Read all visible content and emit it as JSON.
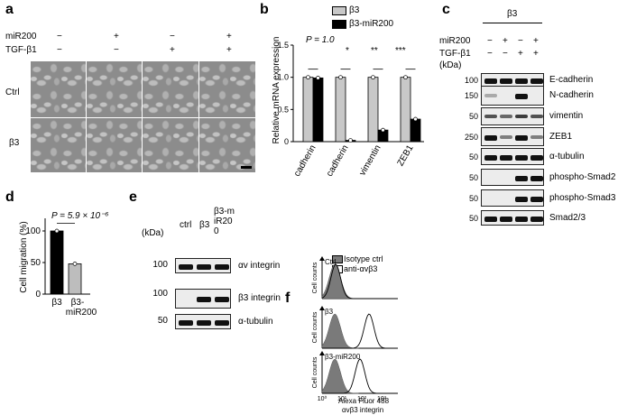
{
  "panel_a": {
    "label": "a",
    "cond_mir200": "miR200",
    "cond_tgf": "TGF-β1",
    "mir200_signs": [
      "−",
      "+",
      "−",
      "+"
    ],
    "tgf_signs": [
      "−",
      "−",
      "+",
      "+"
    ],
    "row_labels": [
      "Ctrl",
      "β3"
    ]
  },
  "panel_b": {
    "label": "b",
    "legend": [
      "β3",
      "β3-miR200"
    ],
    "p_text": "P = 1.0",
    "sig": [
      "*",
      "**",
      "***"
    ]
  },
  "panel_c": {
    "label": "c",
    "header": "β3",
    "mir200": "miR200",
    "tgf": "TGF-β1",
    "signs_mir": [
      "−",
      "+",
      "−",
      "+"
    ],
    "signs_tgf": [
      "−",
      "−",
      "+",
      "+"
    ],
    "kda": "(kDa)",
    "blots": [
      {
        "mw": "100",
        "name": "E-cadherin"
      },
      {
        "mw": "150",
        "name": "N-cadherin"
      },
      {
        "mw": "50",
        "name": "vimentin"
      },
      {
        "mw": "250",
        "name": "ZEB1"
      },
      {
        "mw": "50",
        "name": "α-tubulin"
      },
      {
        "mw": "50",
        "name": "phospho-Smad2"
      },
      {
        "mw": "50",
        "name": "phospho-Smad3"
      },
      {
        "mw": "50",
        "name": "Smad2/3"
      }
    ]
  },
  "panel_d": {
    "label": "d",
    "p_text": "P = 5.9 × 10⁻⁶"
  },
  "panel_e": {
    "label": "e",
    "kda": "(kDa)",
    "lanes": [
      "ctrl",
      "β3",
      "β3-miR200"
    ],
    "blots": [
      {
        "mw": "100",
        "name": "αv integrin"
      },
      {
        "mw": "100",
        "name": "β3 integrin"
      },
      {
        "mw": "50",
        "name": "α-tubulin"
      }
    ]
  },
  "panel_f": {
    "label": "f",
    "legend": [
      "Isotype ctrl",
      "anti-αvβ3"
    ],
    "rows": [
      "Ctrl",
      "β3",
      "β3-miR200"
    ],
    "ylabel": "Cell counts",
    "xlabel1": "Alexa Fluor 488",
    "xlabel2": "αvβ3 integrin",
    "xticks": [
      "10⁰",
      "10¹",
      "10²",
      "10³"
    ]
  },
  "chart_data": [
    {
      "type": "bar",
      "ylabel": "Relative mRNA expression",
      "categories": [
        "E-cadherin",
        "N-cadherin",
        "vimentin",
        "ZEB1"
      ],
      "yticks": [
        "0",
        "0.5",
        "1.0",
        "1.5"
      ],
      "ylim": [
        0,
        1.5
      ],
      "series": [
        {
          "name": "β3",
          "values": [
            1.0,
            1.0,
            1.0,
            1.0
          ],
          "color": "#c8c8c8"
        },
        {
          "name": "β3-miR200",
          "values": [
            0.99,
            0.02,
            0.18,
            0.35
          ],
          "color": "#000000"
        }
      ]
    },
    {
      "type": "bar",
      "ylabel": "Cell migration (%)",
      "categories": [
        "β3",
        "β3-miR200"
      ],
      "yticks": [
        "0",
        "50",
        "100"
      ],
      "ylim": [
        0,
        120
      ],
      "values": [
        100,
        48
      ],
      "colors": [
        "#000000",
        "#bdbdbd"
      ]
    }
  ]
}
